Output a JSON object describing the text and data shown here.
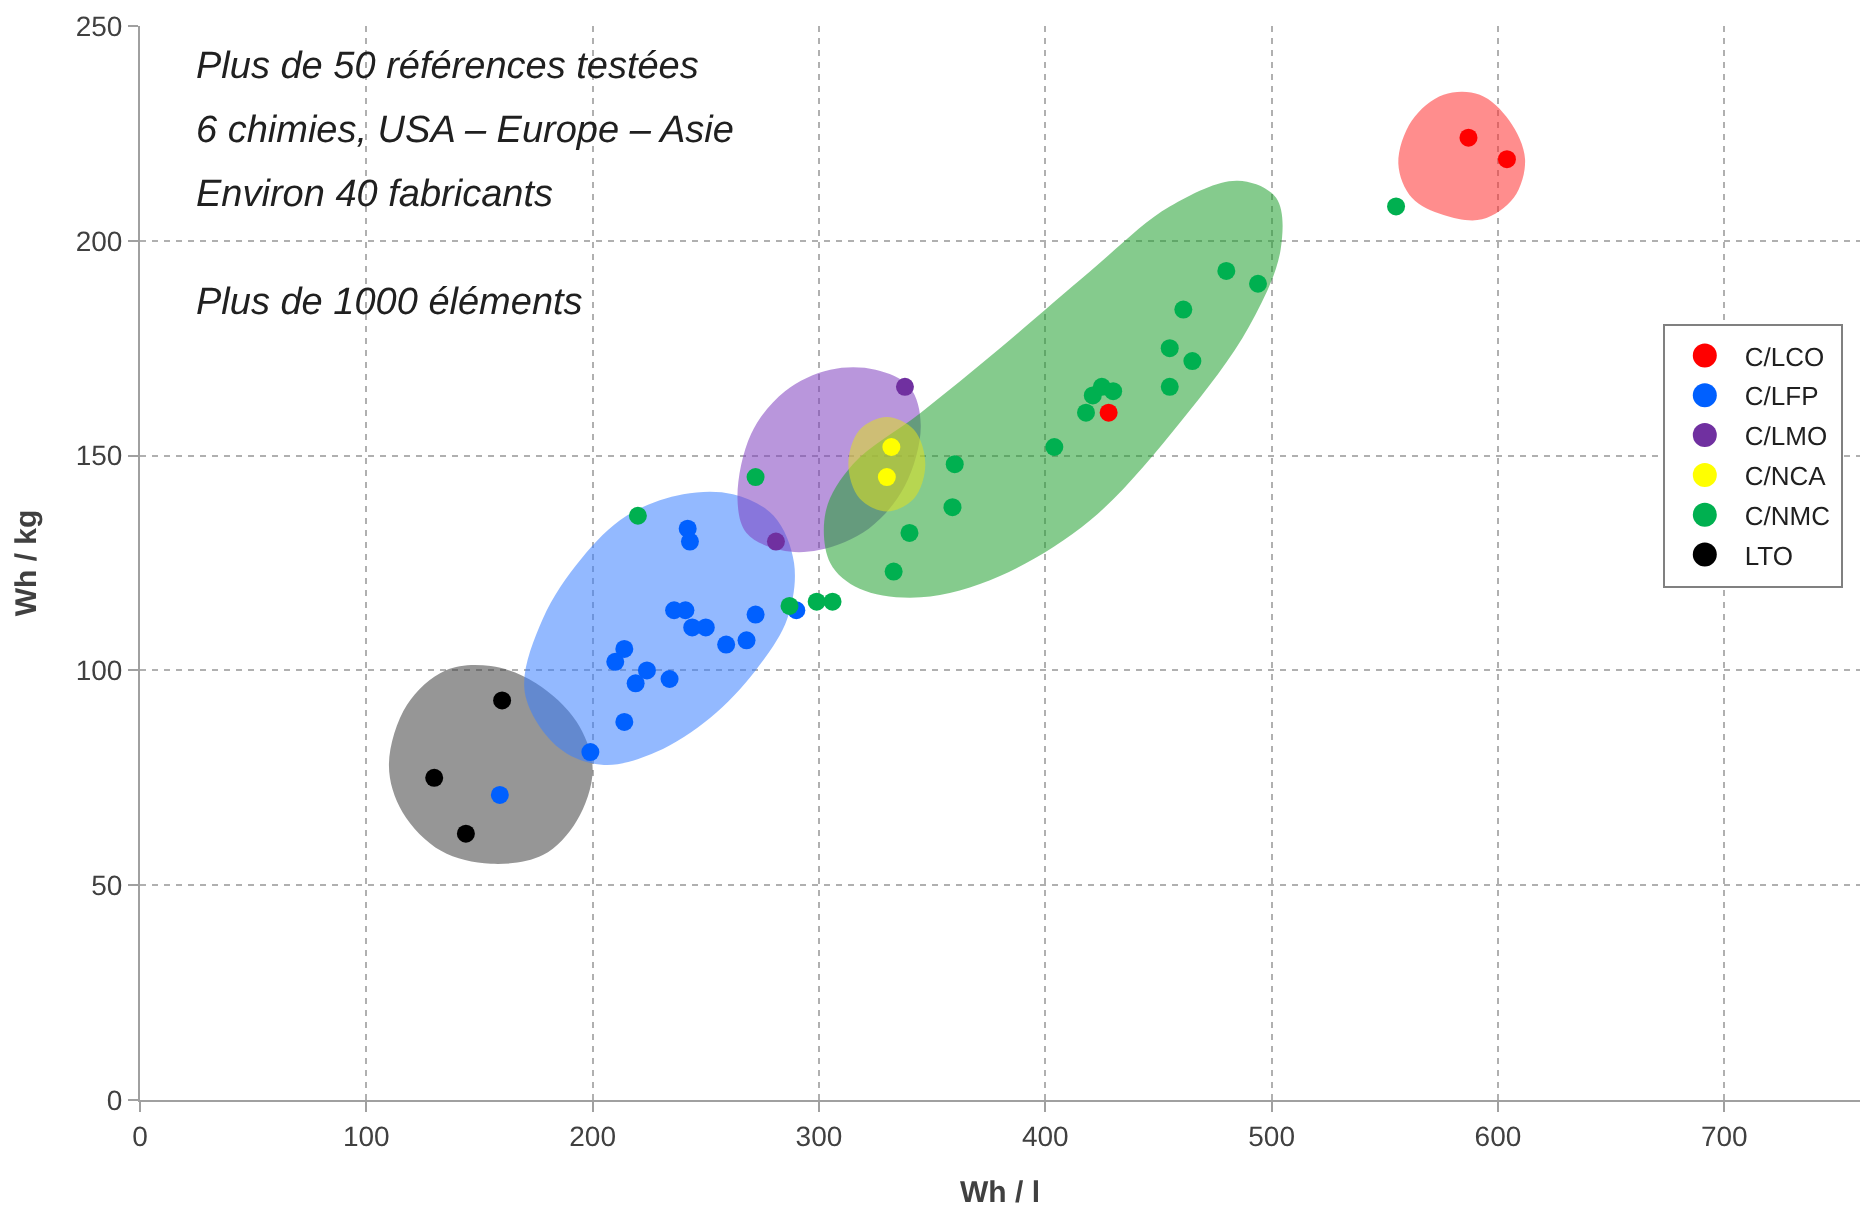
{
  "chart_data": {
    "type": "scatter",
    "xlabel": "Wh / l",
    "ylabel": "Wh / kg",
    "annotations": [
      "Plus de 50 références testées",
      "6 chimies, USA – Europe – Asie",
      "Environ 40 fabricants",
      "Plus de 1000 éléments"
    ],
    "xlim": [
      0,
      760
    ],
    "ylim": [
      0,
      250
    ],
    "xticks": [
      0,
      100,
      200,
      300,
      400,
      500,
      600,
      700
    ],
    "yticks": [
      0,
      50,
      100,
      150,
      200,
      250
    ],
    "grid": true,
    "legend": "right",
    "marker": "circle",
    "series": [
      {
        "type": "area",
        "marker": "none",
        "color": "#404040",
        "x": [
          110,
          118,
          135,
          155,
          175,
          193,
          200,
          193,
          178,
          155,
          133,
          116
        ],
        "values": [
          78,
          92,
          100,
          101,
          97,
          88,
          77,
          65,
          57,
          55,
          58,
          67
        ]
      },
      {
        "type": "area",
        "marker": "none",
        "color": "#3a7fff",
        "x": [
          170,
          178,
          195,
          215,
          240,
          262,
          280,
          289,
          286,
          272,
          252,
          228,
          205,
          185
        ],
        "values": [
          95,
          112,
          126,
          136,
          141,
          141,
          136,
          125,
          112,
          100,
          89,
          81,
          78,
          82
        ]
      },
      {
        "type": "area",
        "marker": "none",
        "color": "#8040c0",
        "x": [
          264,
          270,
          285,
          305,
          325,
          340,
          345,
          338,
          322,
          300,
          283,
          268
        ],
        "values": [
          140,
          155,
          165,
          170,
          170,
          166,
          157,
          143,
          133,
          128,
          128,
          132
        ]
      },
      {
        "type": "area",
        "marker": "none",
        "color": "#20a030",
        "x": [
          303,
          305,
          318,
          345,
          380,
          420,
          460,
          490,
          504,
          502,
          485,
          455,
          420,
          380,
          345,
          315
        ],
        "values": [
          137,
          125,
          119,
          117,
          122,
          135,
          158,
          180,
          198,
          210,
          214,
          208,
          193,
          175,
          160,
          148
        ]
      },
      {
        "type": "area",
        "marker": "none",
        "color": "#e0e020",
        "x": [
          313,
          318,
          330,
          342,
          347,
          342,
          330,
          318
        ],
        "values": [
          148,
          156,
          159,
          156,
          148,
          140,
          137,
          140
        ]
      },
      {
        "type": "area",
        "marker": "none",
        "color": "#ff3030",
        "x": [
          556,
          562,
          576,
          592,
          605,
          612,
          607,
          593,
          576,
          562
        ],
        "values": [
          218,
          228,
          234,
          234,
          228,
          219,
          210,
          205,
          206,
          210
        ]
      },
      {
        "name": "C/LCO",
        "color": "#ff0000",
        "x": [
          587,
          604,
          428
        ],
        "values": [
          224,
          219,
          160
        ]
      },
      {
        "name": "C/LFP",
        "color": "#0060ff",
        "x": [
          242,
          243,
          236,
          241,
          244,
          250,
          259,
          268,
          272,
          290,
          210,
          214,
          224,
          219,
          234,
          214,
          199,
          159
        ],
        "values": [
          133,
          130,
          114,
          114,
          110,
          110,
          106,
          107,
          113,
          114,
          102,
          105,
          100,
          97,
          98,
          88,
          81,
          71
        ]
      },
      {
        "name": "C/LMO",
        "color": "#7030a0",
        "x": [
          281,
          338
        ],
        "values": [
          130,
          166
        ]
      },
      {
        "name": "C/NCA",
        "color": "#ffff00",
        "x": [
          332,
          330
        ],
        "values": [
          152,
          145
        ]
      },
      {
        "name": "C/NMC",
        "color": "#00b050",
        "x": [
          220,
          272,
          287,
          299,
          306,
          333,
          340,
          359,
          360,
          404,
          418,
          421,
          425,
          430,
          455,
          455,
          461,
          465,
          480,
          494,
          555
        ],
        "values": [
          136,
          145,
          115,
          116,
          116,
          123,
          132,
          138,
          148,
          152,
          160,
          164,
          166,
          165,
          166,
          175,
          184,
          172,
          193,
          190,
          208
        ]
      },
      {
        "name": "LTO",
        "color": "#000000",
        "x": [
          130,
          144,
          160
        ],
        "values": [
          75,
          62,
          93
        ]
      }
    ]
  }
}
